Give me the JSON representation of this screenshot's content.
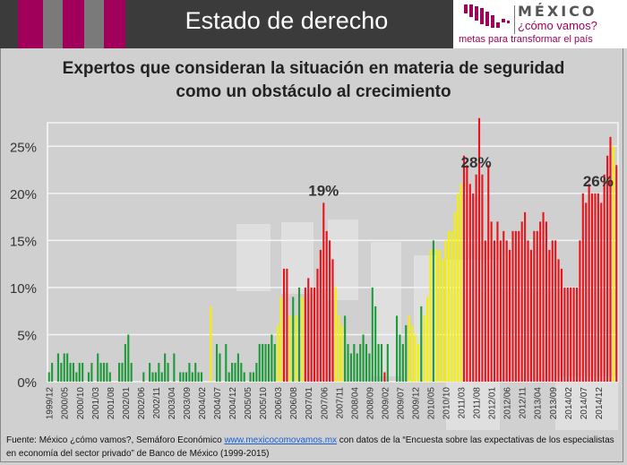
{
  "header": {
    "title": "Estado de derecho",
    "stripe_colors": [
      "#a0005a",
      "#7a7a7a",
      "#a0005a",
      "#7a7a7a",
      "#a0005a"
    ]
  },
  "logo": {
    "mexico": "MÉXICO",
    "como_vamos": "¿cómo vamos?",
    "tagline": "metas para transformar el país",
    "color": "#a0005a"
  },
  "source": {
    "prefix": "Fuente: México ¿cómo vamos?, Semáforo Económico ",
    "link": "www.mexicocomovamos.mx",
    "suffix": " con datos de la “Encuesta sobre las expectativas de los especialistas en economía del sector privado” de Banco de México (1999-2015)"
  },
  "colors": {
    "green": "#1e9a3a",
    "yellow": "#f5f000",
    "red": "#e8141c"
  },
  "chart_data": {
    "type": "bar",
    "title": "Expertos que consideran la situación en materia de seguridad  como un obstáculo al crecimiento",
    "xlabel": "",
    "ylabel": "",
    "ylim": [
      0,
      28
    ],
    "yticks": [
      "0%",
      "5%",
      "10%",
      "15%",
      "20%",
      "25%"
    ],
    "ytick_values": [
      0,
      5,
      10,
      15,
      20,
      25
    ],
    "grid": true,
    "start": "1999/12",
    "frequency": "monthly",
    "xtick_labels": [
      "1999/12",
      "2000/05",
      "2000/10",
      "2001/03",
      "2001/08",
      "2002/01",
      "2002/06",
      "2002/11",
      "2003/04",
      "2003/09",
      "2004/02",
      "2004/07",
      "2004/12",
      "2005/05",
      "2005/10",
      "2006/03",
      "2006/08",
      "2007/01",
      "2007/06",
      "2007/11",
      "2008/04",
      "2008/09",
      "2009/02",
      "2009/07",
      "2009/12",
      "2010/05",
      "2010/10",
      "2011/03",
      "2011/08",
      "2012/01",
      "2012/06",
      "2012/11",
      "2013/04",
      "2013/09",
      "2014/02",
      "2014/07",
      "2014/12"
    ],
    "annotations": [
      {
        "label": "19%",
        "month": "2007/06"
      },
      {
        "label": "28%",
        "month": "2011/08"
      },
      {
        "label": "26%",
        "month": "2014/12"
      }
    ],
    "values": [
      1,
      2,
      0,
      3,
      2,
      3,
      3,
      2,
      2,
      1,
      2,
      2,
      0,
      1,
      2,
      0,
      3,
      2,
      2,
      2,
      1,
      0,
      0,
      2,
      2,
      4,
      5,
      2,
      0,
      0,
      0,
      1,
      0,
      2,
      1,
      1,
      2,
      1,
      3,
      2,
      0,
      3,
      0,
      1,
      1,
      1,
      2,
      1,
      2,
      1,
      1,
      0,
      0,
      8,
      0,
      4,
      3,
      0,
      4,
      1,
      2,
      2,
      3,
      2,
      1,
      0,
      1,
      1,
      2,
      4,
      4,
      4,
      4,
      5,
      4,
      6,
      9,
      12,
      12,
      7,
      9,
      7,
      10,
      9,
      10,
      11,
      10,
      10,
      12,
      14,
      19,
      16,
      15,
      13,
      10,
      7,
      6,
      7,
      4,
      3,
      4,
      3,
      4,
      5,
      4,
      3,
      10,
      8,
      4,
      4,
      1,
      4,
      0,
      0,
      7,
      5,
      4,
      6,
      7,
      6,
      5,
      4,
      8,
      7,
      9,
      14,
      15,
      14,
      14,
      13,
      15,
      16,
      16,
      18,
      20,
      21,
      24,
      23,
      21,
      20,
      22,
      28,
      22,
      15,
      23,
      17,
      15,
      17,
      15,
      16,
      15,
      14,
      16,
      16,
      16,
      17,
      18,
      15,
      14,
      16,
      16,
      17,
      18,
      17,
      14,
      15,
      15,
      13,
      12,
      10,
      10,
      10,
      10,
      10,
      15,
      20,
      19,
      21,
      20,
      20,
      20,
      19,
      22,
      24,
      26,
      25,
      23
    ],
    "categories_color": "gggggggggggggggggggggggggggggggggggggggggggggggggggggygggggggggggggggggggggyyrrygygyrrrrrrrrrryyygggggggggggggrgggggggyyyygyyygyyyyyyyyyrrrrrrrrrrrrrrrrrrrrrrrrrrrrrrrrrrrrrrrrrrrrrrrrryrrrrrrrrrrrrrrrr"
  }
}
